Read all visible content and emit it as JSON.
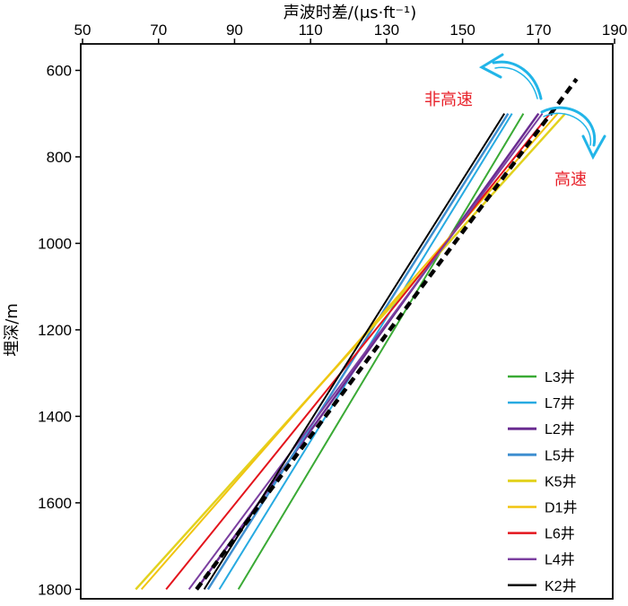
{
  "chart_data": {
    "type": "line",
    "title": "",
    "xlabel": "声波时差/(μs·ft⁻¹)",
    "ylabel": "埋深/m",
    "xlim": [
      50,
      190
    ],
    "ylim": [
      1820,
      560
    ],
    "y_inverted": true,
    "x_axis_position": "top",
    "x_ticks": [
      50,
      70,
      90,
      110,
      130,
      150,
      170,
      190
    ],
    "y_ticks": [
      600,
      800,
      1000,
      1200,
      1400,
      1600,
      1800
    ],
    "grid": false,
    "legend_position": "bottom-right",
    "series": [
      {
        "name": "L3井",
        "color": "#3aaa35",
        "width": 2,
        "dashed": false,
        "points": [
          [
            91,
            1800
          ],
          [
            166,
            700
          ]
        ]
      },
      {
        "name": "L7井",
        "color": "#27aae1",
        "width": 2,
        "dashed": false,
        "points": [
          [
            86,
            1800
          ],
          [
            163,
            700
          ]
        ]
      },
      {
        "name": "L2井",
        "color": "#6a2c91",
        "width": 2.5,
        "dashed": false,
        "points": [
          [
            80,
            1800
          ],
          [
            170,
            700
          ]
        ]
      },
      {
        "name": "L5井",
        "color": "#3f8fd0",
        "width": 2.5,
        "dashed": false,
        "points": [
          [
            83,
            1800
          ],
          [
            162,
            700
          ]
        ]
      },
      {
        "name": "K5井",
        "color": "#e2d21e",
        "width": 2.5,
        "dashed": false,
        "points": [
          [
            64,
            1800
          ],
          [
            177,
            700
          ]
        ]
      },
      {
        "name": "D1井",
        "color": "#f1c40f",
        "width": 2,
        "dashed": false,
        "points": [
          [
            65.5,
            1800
          ],
          [
            175,
            700
          ]
        ]
      },
      {
        "name": "L6井",
        "color": "#e3141c",
        "width": 2,
        "dashed": false,
        "points": [
          [
            72,
            1800
          ],
          [
            173,
            700
          ]
        ]
      },
      {
        "name": "L4井",
        "color": "#7b3fa0",
        "width": 2,
        "dashed": false,
        "points": [
          [
            78,
            1800
          ],
          [
            171,
            700
          ]
        ]
      },
      {
        "name": "K2井",
        "color": "#000000",
        "width": 2,
        "dashed": false,
        "points": [
          [
            82,
            1800
          ],
          [
            161,
            700
          ]
        ]
      },
      {
        "name": "",
        "color": "#000000",
        "width": 4.5,
        "dashed": true,
        "points": [
          [
            80,
            1800
          ],
          [
            180,
            620
          ]
        ]
      }
    ],
    "annotations": [
      {
        "text": "非高速",
        "color": "#e8212a"
      },
      {
        "text": "高速",
        "color": "#e8212a"
      }
    ]
  }
}
